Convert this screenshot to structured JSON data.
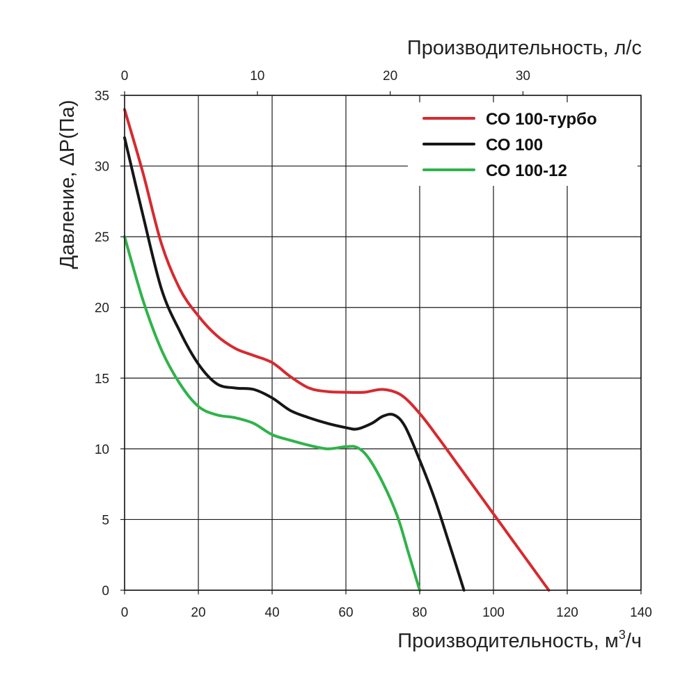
{
  "chart_data": {
    "type": "line",
    "title": "",
    "xlabel": "Производительность, м³/ч",
    "x2label": "Производительность, л/с",
    "ylabel": "Давление, ΔP(Па)",
    "xlim": [
      0,
      140
    ],
    "ylim": [
      0,
      35
    ],
    "x2lim": [
      0,
      38.89
    ],
    "x_ticks": [
      "0",
      "20",
      "40",
      "60",
      "80",
      "100",
      "120",
      "140"
    ],
    "y_ticks": [
      "0",
      "5",
      "10",
      "15",
      "20",
      "25",
      "30",
      "35"
    ],
    "x2_ticks": [
      "0",
      "10",
      "20",
      "30"
    ],
    "grid": true,
    "legend_position": "top-right",
    "series": [
      {
        "name": "СО 100-турбо",
        "color": "#d62a2f",
        "x": [
          0,
          5,
          10,
          15,
          20,
          25,
          30,
          35,
          40,
          45,
          50,
          55,
          60,
          65,
          70,
          75,
          80,
          85,
          90,
          95,
          100,
          105,
          110,
          115
        ],
        "y": [
          34,
          29.5,
          24.5,
          21.3,
          19.4,
          18,
          17.1,
          16.6,
          16.1,
          15.1,
          14.3,
          14.05,
          14,
          14,
          14.2,
          13.8,
          12.5,
          10.8,
          9.0,
          7.2,
          5.4,
          3.6,
          1.8,
          0
        ]
      },
      {
        "name": "СО 100",
        "color": "#161616",
        "x": [
          0,
          5,
          10,
          15,
          20,
          25,
          30,
          35,
          40,
          45,
          50,
          55,
          60,
          63,
          67,
          70,
          73,
          76,
          80,
          84,
          88,
          92
        ],
        "y": [
          32,
          26.5,
          21.3,
          18.3,
          16,
          14.6,
          14.3,
          14.2,
          13.6,
          12.7,
          12.2,
          11.8,
          11.5,
          11.4,
          11.8,
          12.3,
          12.4,
          11.6,
          9.2,
          6.5,
          3.3,
          0
        ]
      },
      {
        "name": "СО 100-12",
        "color": "#2fb34a",
        "x": [
          0,
          5,
          10,
          15,
          20,
          25,
          30,
          35,
          40,
          45,
          50,
          55,
          60,
          63,
          66,
          70,
          74,
          77,
          80
        ],
        "y": [
          25,
          20.5,
          17,
          14.6,
          13,
          12.4,
          12.2,
          11.8,
          11,
          10.6,
          10.25,
          10,
          10.15,
          10.1,
          9.4,
          7.6,
          5.2,
          2.6,
          0
        ]
      }
    ]
  }
}
